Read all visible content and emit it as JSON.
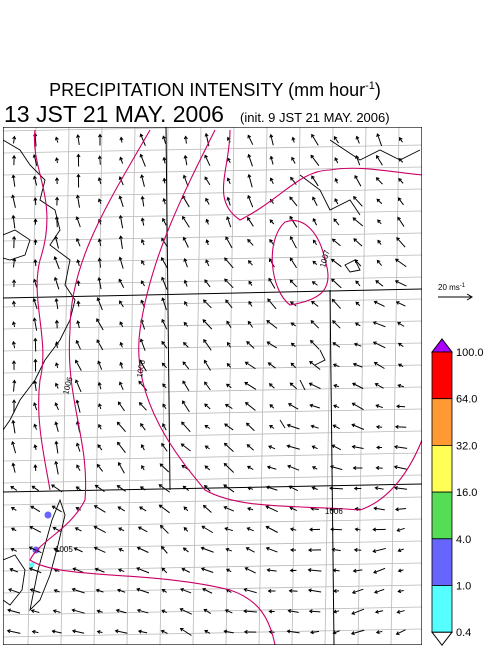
{
  "header": {
    "title": {
      "text": "PRECIPITATION INTENSITY (mm hour",
      "superscript": "-1",
      "end": ")"
    },
    "valid_time": "13 JST 21 MAY. 2006",
    "init_time": "(init. 9 JST 21 MAY. 2006)"
  },
  "vector_key": {
    "text": "20 ms",
    "superscript": "-1"
  },
  "contour_labels": [
    "1007",
    "1006",
    "1006",
    "1006",
    "1005"
  ],
  "colorbar": {
    "labels": [
      "100.0",
      "64.0",
      "32.0",
      "16.0",
      "4.0",
      "1.0",
      "0.4"
    ],
    "colors": [
      "#ff0000",
      "#ff9933",
      "#ffff55",
      "#55dd55",
      "#6666ff",
      "#55ffff"
    ],
    "over_color": "#aa00ff",
    "under_color": "#ffffff"
  }
}
